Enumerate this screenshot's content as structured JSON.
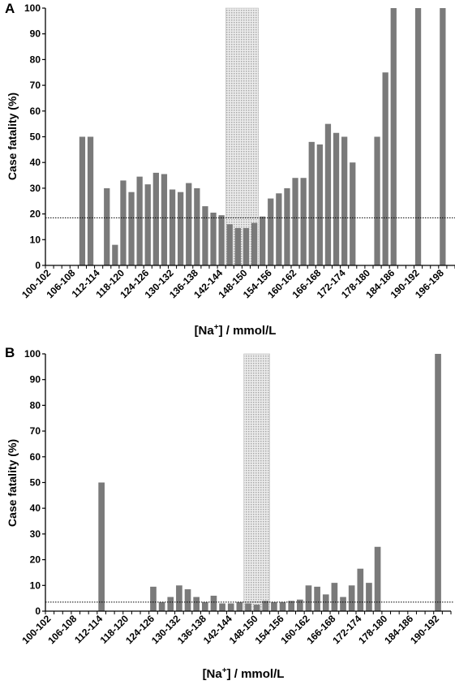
{
  "chart_data": [
    {
      "type": "bar",
      "panel_label": "A",
      "ylabel": "Case fatality (%)",
      "xlabel_main": "[Na",
      "xlabel_sup": "+",
      "xlabel_rest": "] / mmol/L",
      "ylim": [
        0,
        100
      ],
      "yticks": [
        0,
        10,
        20,
        30,
        40,
        50,
        60,
        70,
        80,
        90,
        100
      ],
      "categories": [
        "100-102",
        "102-104",
        "104-106",
        "106-108",
        "108-110",
        "110-112",
        "112-114",
        "114-116",
        "116-118",
        "118-120",
        "120-122",
        "122-124",
        "124-126",
        "126-128",
        "128-130",
        "130-132",
        "132-134",
        "134-136",
        "136-138",
        "138-140",
        "140-142",
        "142-144",
        "144-146",
        "146-148",
        "148-150",
        "150-152",
        "152-154",
        "154-156",
        "156-158",
        "158-160",
        "160-162",
        "162-164",
        "164-166",
        "166-168",
        "168-170",
        "170-172",
        "172-174",
        "174-176",
        "176-178",
        "178-180",
        "180-182",
        "182-184",
        "184-186",
        "186-188",
        "188-190",
        "190-192",
        "192-194",
        "194-196",
        "196-198",
        "198-200"
      ],
      "tick_labels": [
        "100-102",
        "106-108",
        "112-114",
        "118-120",
        "124-126",
        "130-132",
        "136-138",
        "142-144",
        "148-150",
        "154-156",
        "160-162",
        "166-168",
        "172-174",
        "178-180",
        "184-186",
        "190-192",
        "196-198"
      ],
      "values": [
        0,
        0,
        0,
        0,
        50,
        50,
        0,
        30,
        8,
        33,
        28.5,
        34.5,
        31.5,
        36,
        35.5,
        29.5,
        28.5,
        32,
        30,
        23,
        20.5,
        19.5,
        16,
        14.5,
        14.5,
        16.5,
        19,
        26,
        28,
        30,
        34,
        34,
        48,
        47,
        55,
        51.5,
        50,
        40,
        0,
        0,
        50,
        75,
        100,
        0,
        0,
        100,
        0,
        0,
        100,
        0
      ],
      "reference_line": 18.5,
      "normal_range": [
        "144-146",
        "150-152"
      ],
      "colors": {
        "bar": "#7a7a7a",
        "shade": "#d6d6d6"
      }
    },
    {
      "type": "bar",
      "panel_label": "B",
      "ylabel": "Case fatality (%)",
      "xlabel_main": "[Na",
      "xlabel_sup": "+",
      "xlabel_rest": "] / mmol/L",
      "ylim": [
        0,
        100
      ],
      "yticks": [
        0,
        10,
        20,
        30,
        40,
        50,
        60,
        70,
        80,
        90,
        100
      ],
      "categories": [
        "100-102",
        "102-104",
        "104-106",
        "106-108",
        "108-110",
        "110-112",
        "112-114",
        "114-116",
        "116-118",
        "118-120",
        "120-122",
        "122-124",
        "124-126",
        "126-128",
        "128-130",
        "130-132",
        "132-134",
        "134-136",
        "136-138",
        "138-140",
        "140-142",
        "142-144",
        "144-146",
        "146-148",
        "148-150",
        "150-152",
        "152-154",
        "154-156",
        "156-158",
        "158-160",
        "160-162",
        "162-164",
        "164-166",
        "166-168",
        "168-170",
        "170-172",
        "172-174",
        "174-176",
        "176-178",
        "178-180",
        "180-182",
        "182-184",
        "184-186",
        "186-188",
        "188-190",
        "190-192",
        "192-194"
      ],
      "tick_labels": [
        "100-102",
        "106-108",
        "112-114",
        "118-120",
        "124-126",
        "130-132",
        "136-138",
        "142-144",
        "148-150",
        "154-156",
        "160-162",
        "166-168",
        "172-174",
        "178-180",
        "184-186",
        "190-192"
      ],
      "values": [
        0,
        0,
        0,
        0,
        0,
        0,
        50,
        0,
        0,
        0,
        0,
        0,
        9.5,
        3.5,
        5.5,
        10,
        8.5,
        5.5,
        3.5,
        6,
        3,
        3,
        3.5,
        3,
        2.5,
        4,
        3.5,
        3.5,
        4,
        4.5,
        10,
        9.5,
        6.5,
        11,
        5.5,
        10,
        16.5,
        11,
        25,
        0,
        0,
        0,
        0,
        0,
        0,
        100,
        0
      ],
      "reference_line": 3.5,
      "normal_range": [
        "146-148",
        "150-152"
      ],
      "colors": {
        "bar": "#7a7a7a",
        "shade": "#d6d6d6"
      }
    }
  ]
}
